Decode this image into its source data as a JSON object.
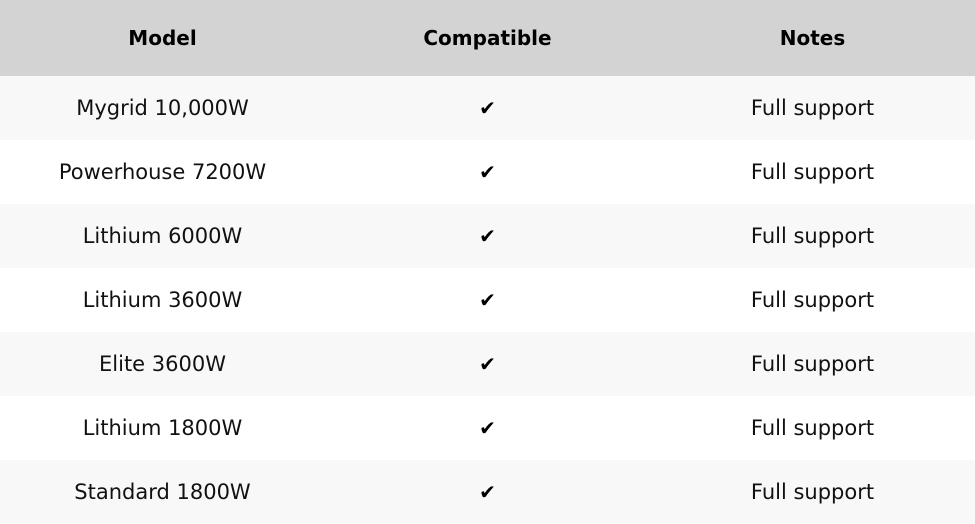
{
  "table": {
    "columns": [
      {
        "label": "Model"
      },
      {
        "label": "Compatible"
      },
      {
        "label": "Notes"
      }
    ],
    "rows": [
      {
        "model": "Mygrid 10,000W",
        "compatible": "✔",
        "notes": "Full support"
      },
      {
        "model": "Powerhouse 7200W",
        "compatible": "✔",
        "notes": "Full support"
      },
      {
        "model": "Lithium 6000W",
        "compatible": "✔",
        "notes": "Full support"
      },
      {
        "model": "Lithium 3600W",
        "compatible": "✔",
        "notes": "Full support"
      },
      {
        "model": "Elite 3600W",
        "compatible": "✔",
        "notes": "Full support"
      },
      {
        "model": "Lithium 1800W",
        "compatible": "✔",
        "notes": "Full support"
      },
      {
        "model": "Standard 1800W",
        "compatible": "✔",
        "notes": "Full support"
      }
    ],
    "colors": {
      "header_bg": "#d3d3d3",
      "row_odd_bg": "#f8f8f8",
      "row_even_bg": "#ffffff",
      "text": "#111111",
      "checkmark": "#000000"
    }
  }
}
